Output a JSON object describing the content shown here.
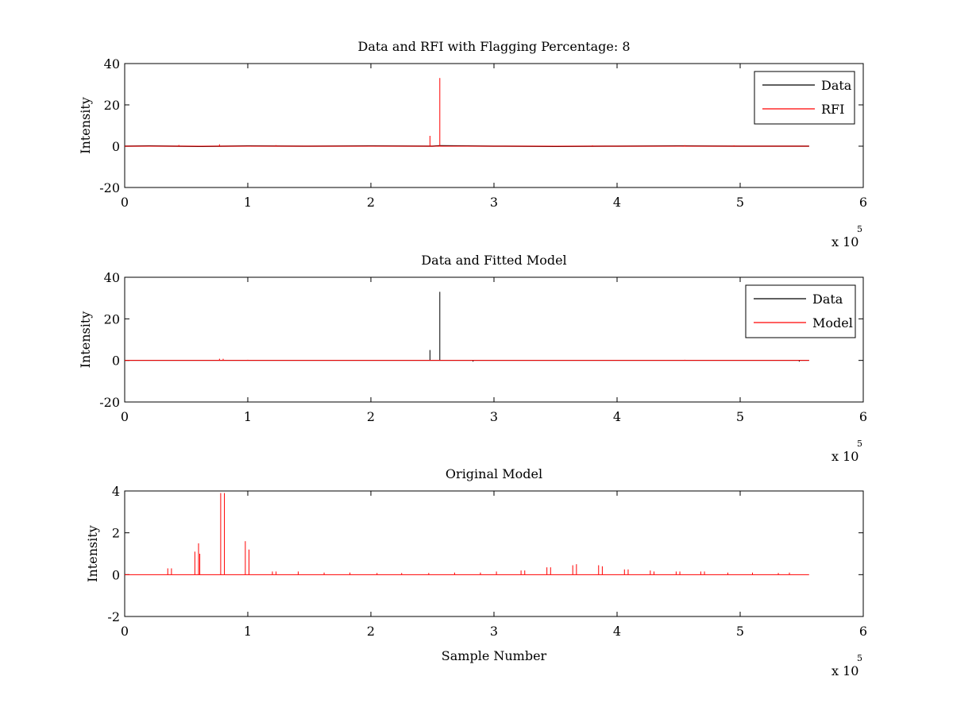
{
  "chart_data": [
    {
      "type": "line",
      "title": "Data and RFI with Flagging Percentage: 8",
      "xlabel": "",
      "ylabel": "Intensity",
      "xlim": [
        0,
        600000
      ],
      "ylim": [
        -20,
        40
      ],
      "xticks": [
        "0",
        "1",
        "2",
        "3",
        "4",
        "5",
        "6"
      ],
      "yticks": [
        "-20",
        "0",
        "20",
        "40"
      ],
      "x_multiplier": {
        "base": "x 10",
        "exp": "5"
      },
      "legend": {
        "position": "top-right"
      },
      "series": [
        {
          "name": "Data",
          "color": "#000000",
          "x": [
            0,
            20000,
            60000,
            100000,
            150000,
            200000,
            250000,
            256000,
            300000,
            350000,
            400000,
            450000,
            500000,
            556000
          ],
          "values": [
            0,
            0.1,
            -0.1,
            0.1,
            0,
            0.1,
            0,
            0.2,
            0,
            -0.1,
            0,
            0.1,
            0,
            0
          ]
        },
        {
          "name": "RFI",
          "color": "#ff0000",
          "spikes": [
            {
              "x": 44000,
              "y": 0.6
            },
            {
              "x": 77000,
              "y": 0.9
            },
            {
              "x": 123000,
              "y": 0.5
            },
            {
              "x": 248000,
              "y": 5
            },
            {
              "x": 256000,
              "y": 33
            },
            {
              "x": 380000,
              "y": 0.4
            },
            {
              "x": 455000,
              "y": 0.5
            },
            {
              "x": 495000,
              "y": 0.4
            }
          ]
        }
      ]
    },
    {
      "type": "line",
      "title": "Data and Fitted Model",
      "xlabel": "",
      "ylabel": "Intensity",
      "xlim": [
        0,
        600000
      ],
      "ylim": [
        -20,
        40
      ],
      "xticks": [
        "0",
        "1",
        "2",
        "3",
        "4",
        "5",
        "6"
      ],
      "yticks": [
        "-20",
        "0",
        "20",
        "40"
      ],
      "x_multiplier": {
        "base": "x 10",
        "exp": "5"
      },
      "legend": {
        "position": "top-right"
      },
      "series": [
        {
          "name": "Data",
          "color": "#000000",
          "spikes": [
            {
              "x": 248000,
              "y": 5
            },
            {
              "x": 256000,
              "y": 33
            },
            {
              "x": 283000,
              "y": -0.6
            },
            {
              "x": 548000,
              "y": -0.6
            }
          ]
        },
        {
          "name": "Model",
          "color": "#ff0000",
          "spikes": [
            {
              "x": 77000,
              "y": 0.8
            },
            {
              "x": 80000,
              "y": 0.8
            },
            {
              "x": 100000,
              "y": 0.3
            },
            {
              "x": 440000,
              "y": 0.2
            },
            {
              "x": 455000,
              "y": 0.3
            },
            {
              "x": 475000,
              "y": 0.2
            }
          ]
        }
      ]
    },
    {
      "type": "line",
      "title": "Original Model",
      "xlabel": "Sample Number",
      "ylabel": "Intensity",
      "xlim": [
        0,
        600000
      ],
      "ylim": [
        -2,
        4
      ],
      "xticks": [
        "0",
        "1",
        "2",
        "3",
        "4",
        "5",
        "6"
      ],
      "yticks": [
        "-2",
        "0",
        "2",
        "4"
      ],
      "x_multiplier": {
        "base": "x 10",
        "exp": "5"
      },
      "series": [
        {
          "color": "#ff0000",
          "spikes": [
            {
              "x": 35000,
              "y": 0.3
            },
            {
              "x": 38000,
              "y": 0.3
            },
            {
              "x": 57000,
              "y": 1.1
            },
            {
              "x": 60000,
              "y": 1.5
            },
            {
              "x": 61000,
              "y": 1.0
            },
            {
              "x": 78000,
              "y": 3.9
            },
            {
              "x": 81000,
              "y": 3.9
            },
            {
              "x": 98000,
              "y": 1.6
            },
            {
              "x": 101000,
              "y": 1.2
            },
            {
              "x": 120000,
              "y": 0.15
            },
            {
              "x": 123000,
              "y": 0.15
            },
            {
              "x": 141000,
              "y": 0.15
            },
            {
              "x": 162000,
              "y": 0.1
            },
            {
              "x": 183000,
              "y": 0.1
            },
            {
              "x": 205000,
              "y": 0.08
            },
            {
              "x": 225000,
              "y": 0.08
            },
            {
              "x": 247000,
              "y": 0.08
            },
            {
              "x": 268000,
              "y": 0.1
            },
            {
              "x": 289000,
              "y": 0.1
            },
            {
              "x": 302000,
              "y": 0.15
            },
            {
              "x": 322000,
              "y": 0.2
            },
            {
              "x": 325000,
              "y": 0.2
            },
            {
              "x": 343000,
              "y": 0.35
            },
            {
              "x": 346000,
              "y": 0.35
            },
            {
              "x": 364000,
              "y": 0.45
            },
            {
              "x": 367000,
              "y": 0.5
            },
            {
              "x": 385000,
              "y": 0.45
            },
            {
              "x": 388000,
              "y": 0.4
            },
            {
              "x": 406000,
              "y": 0.25
            },
            {
              "x": 409000,
              "y": 0.25
            },
            {
              "x": 427000,
              "y": 0.2
            },
            {
              "x": 430000,
              "y": 0.15
            },
            {
              "x": 448000,
              "y": 0.15
            },
            {
              "x": 451000,
              "y": 0.15
            },
            {
              "x": 468000,
              "y": 0.15
            },
            {
              "x": 471000,
              "y": 0.15
            },
            {
              "x": 490000,
              "y": 0.1
            },
            {
              "x": 510000,
              "y": 0.1
            },
            {
              "x": 531000,
              "y": 0.08
            },
            {
              "x": 540000,
              "y": 0.1
            }
          ]
        }
      ]
    }
  ]
}
